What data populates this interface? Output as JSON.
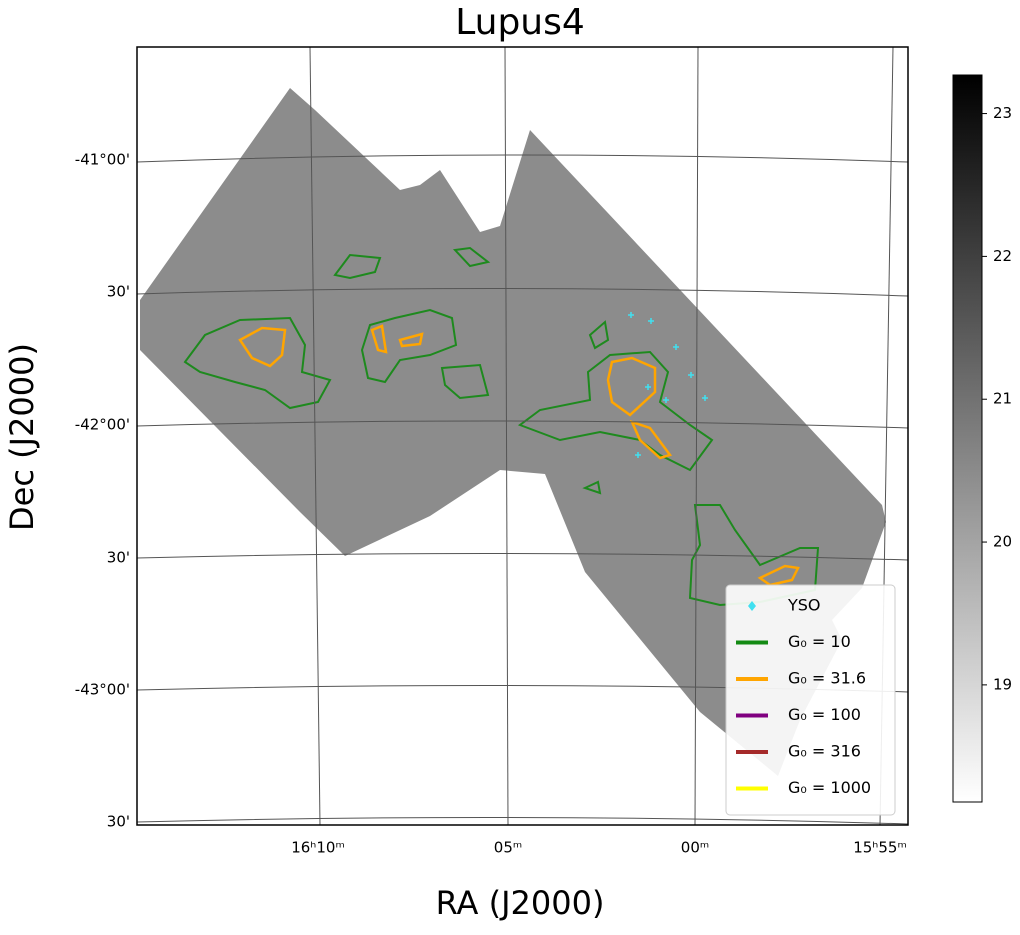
{
  "chart_data": {
    "type": "image",
    "title": "Lupus4",
    "x_label": "RA (J2000)",
    "y_label": "Dec (J2000)",
    "x_tick_labels": [
      "16ʰ10ᵐ",
      "05ᵐ",
      "00ᵐ",
      "15ʰ55ᵐ"
    ],
    "y_tick_labels": [
      "-41°00'",
      "30'",
      "-42°00'",
      "30'",
      "-43°00'",
      "30'"
    ],
    "legend": [
      {
        "name": "YSO",
        "color": "#40e0f0",
        "marker": "diamond"
      },
      {
        "name": "G₀ = 10",
        "color": "#138a13"
      },
      {
        "name": "G₀ = 31.6",
        "color": "#ffa500"
      },
      {
        "name": "G₀ = 100",
        "color": "#800080"
      },
      {
        "name": "G₀ = 316",
        "color": "#a52a2a"
      },
      {
        "name": "G₀ = 1000",
        "color": "#ffff00"
      }
    ],
    "colorbar": {
      "lim": [
        18.18,
        23.27
      ],
      "ticks": [
        19,
        20,
        21,
        22,
        23
      ]
    }
  }
}
